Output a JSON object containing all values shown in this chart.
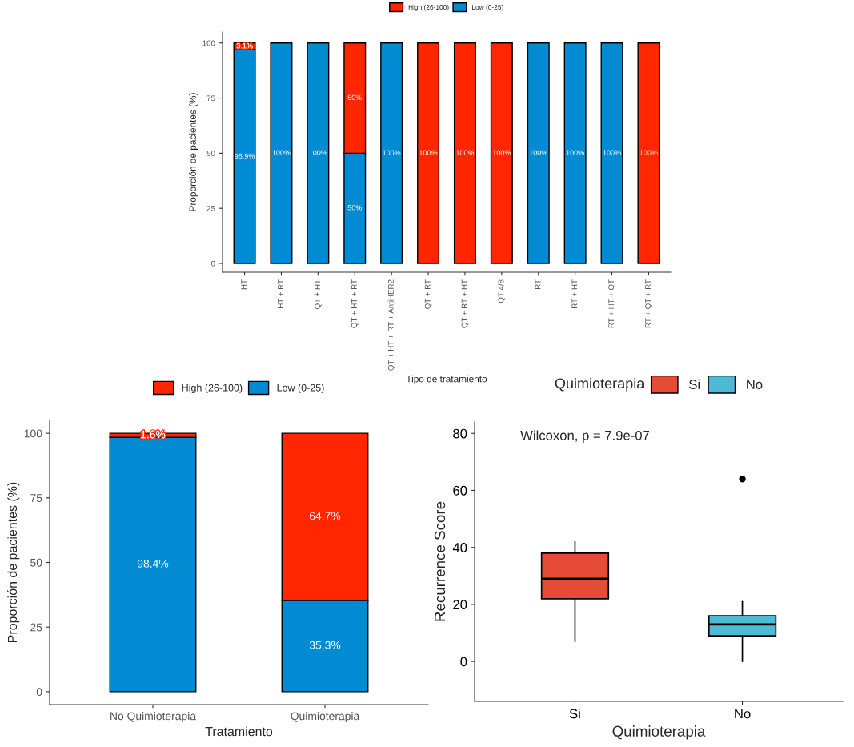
{
  "chart_data": [
    {
      "type": "bar",
      "stacked": true,
      "xlabel": "Tipo de tratamiento",
      "ylabel": "Proporción de pacientes (%)",
      "legend": "top",
      "categories": [
        "HT",
        "HT + RT",
        "QT + HT",
        "QT + HT + RT",
        "QT + HT + RT + AntiHER2",
        "QT + RT",
        "QT + RT + HT",
        "QT 4/8",
        "RT",
        "RT + HT",
        "RT + HT + QT",
        "RT + QT + RT"
      ],
      "ylim": [
        -4,
        105
      ],
      "yticks": [
        0,
        25,
        50,
        75,
        100
      ],
      "grid": false,
      "series": [
        {
          "name": "Low (0-25)",
          "color": "#028bd3",
          "values": [
            96.9,
            100,
            100,
            50,
            100,
            0,
            0,
            0,
            100,
            100,
            100,
            0
          ],
          "value_labels": [
            "96.9%",
            "100%",
            "100%",
            "50%",
            "100%",
            null,
            null,
            null,
            "100%",
            "100%",
            "100%",
            null
          ]
        },
        {
          "name": "High (26-100)",
          "color": "#ff2600",
          "values": [
            3.1,
            0,
            0,
            50,
            0,
            100,
            100,
            100,
            0,
            0,
            0,
            100
          ],
          "value_labels": [
            "3.1%",
            null,
            null,
            "50%",
            null,
            "100%",
            "100%",
            "100%",
            null,
            null,
            null,
            "100%"
          ]
        }
      ]
    },
    {
      "type": "bar",
      "stacked": true,
      "xlabel": "Tratamiento",
      "ylabel": "Proporción de pacientes (%)",
      "legend": "top",
      "categories": [
        "No Quimioterapia",
        "Quimioterapia"
      ],
      "ylim": [
        -5,
        105
      ],
      "yticks": [
        0,
        25,
        50,
        75,
        100
      ],
      "grid": false,
      "series": [
        {
          "name": "Low (0-25)",
          "color": "#028bd3",
          "values": [
            98.4,
            35.3
          ],
          "value_labels": [
            "98.4%",
            "35.3%"
          ]
        },
        {
          "name": "High (26-100)",
          "color": "#ff2600",
          "values": [
            1.6,
            64.7
          ],
          "value_labels": [
            "1.6%",
            "64.7%"
          ]
        }
      ]
    },
    {
      "type": "box",
      "xlabel": "Quimioterapia",
      "ylabel": "Recurrence Score",
      "legend_title": "Quimioterapia",
      "legend": "top",
      "categories": [
        "Si",
        "No"
      ],
      "ylim": [
        -14,
        84
      ],
      "yticks": [
        0,
        20,
        40,
        60,
        80
      ],
      "grid": false,
      "annotations": [
        "Wilcoxon, p = 7.9e-07"
      ],
      "series": [
        {
          "name": "Si",
          "color": "#e64b35",
          "boxes": [
            {
              "low": 7,
              "q1": 22,
              "median": 29,
              "q3": 38,
              "high": 42
            },
            null
          ]
        },
        {
          "name": "No",
          "color": "#4dbbd5",
          "boxes": [
            null,
            {
              "low": 0,
              "q1": 9,
              "median": 13,
              "q3": 16,
              "high": 21,
              "outliers": [
                64
              ]
            }
          ]
        }
      ]
    }
  ]
}
